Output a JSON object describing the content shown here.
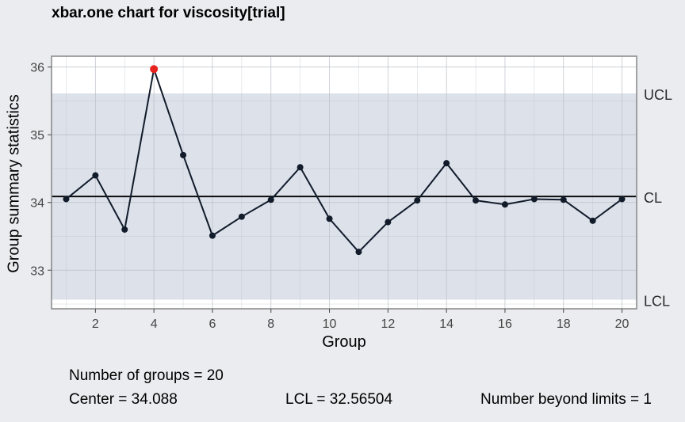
{
  "chart_data": {
    "type": "line",
    "title": "xbar.one chart for viscosity[trial]",
    "xlabel": "Group",
    "ylabel": "Group summary statistics",
    "x": [
      1,
      2,
      3,
      4,
      5,
      6,
      7,
      8,
      9,
      10,
      11,
      12,
      13,
      14,
      15,
      16,
      17,
      18,
      19,
      20
    ],
    "values": [
      34.05,
      34.4,
      33.6,
      35.97,
      34.7,
      33.51,
      33.79,
      34.04,
      34.52,
      33.76,
      33.27,
      33.71,
      34.03,
      34.58,
      34.03,
      33.97,
      34.05,
      34.04,
      33.73,
      34.05
    ],
    "xlim": [
      0.5,
      20.5
    ],
    "ylim": [
      32.43,
      36.16
    ],
    "xticks": [
      2,
      4,
      6,
      8,
      10,
      12,
      14,
      16,
      18,
      20
    ],
    "yticks": [
      33,
      34,
      35,
      36
    ],
    "center": 34.088,
    "ucl": 35.61096,
    "lcl": 32.56504,
    "limit_labels": {
      "ucl": "UCL",
      "cl": "CL",
      "lcl": "LCL"
    },
    "beyond_limits_index": 4,
    "colors": {
      "line": "#111b2a",
      "point": "#111b2a",
      "violation": "#e8231f",
      "band": "#dce1ea",
      "plot_bg": "#ffffff",
      "page_bg": "#ebecf0"
    }
  },
  "stats": {
    "groups": "Number of groups = 20",
    "center": "Center = 34.088",
    "lcl": "LCL = 32.56504",
    "beyond": "Number beyond limits = 1"
  }
}
